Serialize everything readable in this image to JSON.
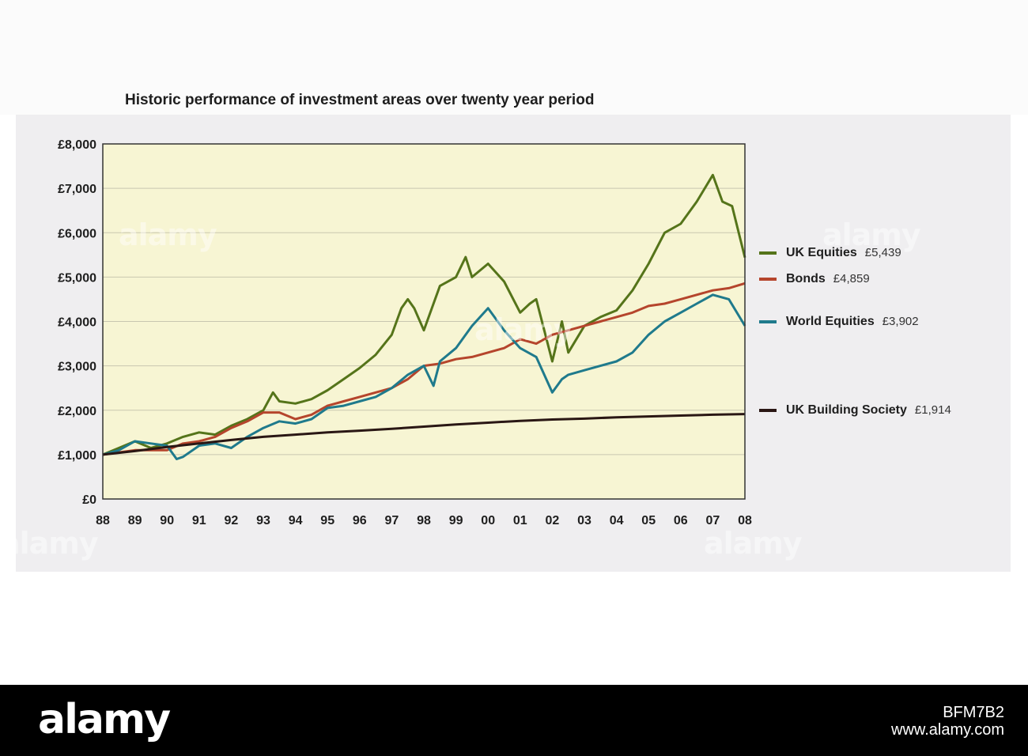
{
  "chart_data": {
    "type": "line",
    "title": "Historic performance of investment areas over twenty year period",
    "xlabel": "",
    "ylabel": "",
    "x_ticks": [
      "88",
      "89",
      "90",
      "91",
      "92",
      "93",
      "94",
      "95",
      "96",
      "97",
      "98",
      "99",
      "00",
      "01",
      "02",
      "03",
      "04",
      "05",
      "06",
      "07",
      "08"
    ],
    "xlim": [
      1988,
      2008
    ],
    "y_ticks": [
      "£0",
      "£1,000",
      "£2,000",
      "£3,000",
      "£4,000",
      "£5,000",
      "£6,000",
      "£7,000",
      "£8,000"
    ],
    "ylim": [
      0,
      8000
    ],
    "grid": true,
    "legend_position": "right",
    "series": [
      {
        "name": "UK Equities",
        "final_label": "£5,439",
        "color": "#55741a",
        "x": [
          1988,
          1988.5,
          1989,
          1989.5,
          1990,
          1990.5,
          1991,
          1991.5,
          1992,
          1992.5,
          1993,
          1993.3,
          1993.5,
          1994,
          1994.5,
          1995,
          1995.5,
          1996,
          1996.5,
          1997,
          1997.3,
          1997.5,
          1997.7,
          1998,
          1998.3,
          1998.5,
          1999,
          1999.3,
          1999.5,
          2000,
          2000.5,
          2001,
          2001.3,
          2001.5,
          2002,
          2002.3,
          2002.5,
          2003,
          2003.5,
          2004,
          2004.5,
          2005,
          2005.5,
          2006,
          2006.5,
          2007,
          2007.3,
          2007.6,
          2008
        ],
        "values": [
          1000,
          1150,
          1300,
          1150,
          1250,
          1400,
          1500,
          1450,
          1650,
          1800,
          2000,
          2400,
          2200,
          2150,
          2250,
          2450,
          2700,
          2950,
          3250,
          3700,
          4300,
          4500,
          4300,
          3800,
          4400,
          4800,
          5000,
          5450,
          5000,
          5300,
          4900,
          4200,
          4400,
          4500,
          3100,
          4000,
          3300,
          3900,
          4100,
          4250,
          4700,
          5300,
          6000,
          6200,
          6700,
          7300,
          6700,
          6600,
          5439
        ]
      },
      {
        "name": "Bonds",
        "final_label": "£4,859",
        "color": "#b5452c",
        "x": [
          1988,
          1988.5,
          1989,
          1989.5,
          1990,
          1990.5,
          1991,
          1991.5,
          1992,
          1992.5,
          1993,
          1993.5,
          1994,
          1994.5,
          1995,
          1995.5,
          1996,
          1996.5,
          1997,
          1997.5,
          1998,
          1998.5,
          1999,
          1999.5,
          2000,
          2000.5,
          2001,
          2001.5,
          2002,
          2002.5,
          2003,
          2003.5,
          2004,
          2004.5,
          2005,
          2005.5,
          2006,
          2006.5,
          2007,
          2007.5,
          2008
        ],
        "values": [
          1000,
          1050,
          1100,
          1100,
          1100,
          1250,
          1300,
          1400,
          1600,
          1750,
          1950,
          1950,
          1800,
          1900,
          2100,
          2200,
          2300,
          2400,
          2500,
          2700,
          3000,
          3050,
          3150,
          3200,
          3300,
          3400,
          3600,
          3500,
          3700,
          3800,
          3900,
          4000,
          4100,
          4200,
          4350,
          4400,
          4500,
          4600,
          4700,
          4750,
          4859
        ]
      },
      {
        "name": "World Equities",
        "final_label": "£3,902",
        "color": "#1f7a8c",
        "x": [
          1988,
          1988.5,
          1989,
          1989.5,
          1990,
          1990.3,
          1990.5,
          1991,
          1991.5,
          1992,
          1992.5,
          1993,
          1993.5,
          1994,
          1994.5,
          1995,
          1995.5,
          1996,
          1996.5,
          1997,
          1997.5,
          1998,
          1998.3,
          1998.5,
          1999,
          1999.5,
          2000,
          2000.5,
          2001,
          2001.5,
          2002,
          2002.3,
          2002.5,
          2003,
          2003.5,
          2004,
          2004.5,
          2005,
          2005.5,
          2006,
          2006.5,
          2007,
          2007.5,
          2008
        ],
        "values": [
          1000,
          1100,
          1300,
          1250,
          1200,
          900,
          950,
          1200,
          1250,
          1150,
          1400,
          1600,
          1750,
          1700,
          1800,
          2050,
          2100,
          2200,
          2300,
          2500,
          2800,
          3000,
          2550,
          3100,
          3400,
          3900,
          4300,
          3800,
          3400,
          3200,
          2400,
          2700,
          2800,
          2900,
          3000,
          3100,
          3300,
          3700,
          4000,
          4200,
          4400,
          4600,
          4500,
          3902
        ]
      },
      {
        "name": "UK Building Society",
        "final_label": "£1,914",
        "color": "#2a1714",
        "x": [
          1988,
          1989,
          1990,
          1991,
          1992,
          1993,
          1994,
          1995,
          1996,
          1997,
          1998,
          1999,
          2000,
          2001,
          2002,
          2003,
          2004,
          2005,
          2006,
          2007,
          2008
        ],
        "values": [
          1000,
          1080,
          1170,
          1250,
          1330,
          1400,
          1450,
          1500,
          1540,
          1580,
          1630,
          1680,
          1720,
          1760,
          1790,
          1810,
          1840,
          1860,
          1880,
          1900,
          1914
        ]
      }
    ]
  },
  "watermark_text": "alamy",
  "footer": {
    "logo_text": "alamy",
    "image_id": "BFM7B2",
    "site": "www.alamy.com"
  }
}
